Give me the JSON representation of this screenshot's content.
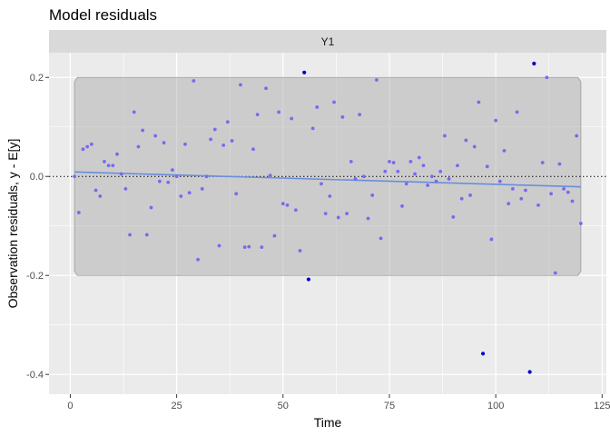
{
  "chart_data": {
    "type": "scatter",
    "title": "Model residuals",
    "panel": "Y1",
    "xlabel": "Time",
    "ylabel": "Observation residuals, y - E[y]",
    "xlim": [
      -5,
      126
    ],
    "ylim": [
      -0.44,
      0.25
    ],
    "xticks": [
      0,
      25,
      50,
      75,
      100,
      125
    ],
    "xtick_labels": [
      "0",
      "25",
      "50",
      "75",
      "100",
      "125"
    ],
    "yticks": [
      0.2,
      0.0,
      -0.2,
      -0.4
    ],
    "ytick_labels": [
      "0.2",
      "0.0",
      "-0.2",
      "-0.4"
    ],
    "grid": true,
    "zero_line": 0,
    "band": {
      "upper": 0.2,
      "lower": -0.2,
      "x_start": 1,
      "x_end": 120
    },
    "trend": {
      "x": [
        1,
        120
      ],
      "y": [
        0.009,
        -0.021
      ]
    },
    "colors": {
      "panel_bg": "#ebebeb",
      "strip_bg": "#d9d9d9",
      "band": "#a6a6a6",
      "inside_point": "#7b68ee",
      "outside_point": "#0000cd",
      "trend": "#6a8edc"
    },
    "points": [
      {
        "x": 1,
        "y": 0.0
      },
      {
        "x": 2,
        "y": -0.073
      },
      {
        "x": 3,
        "y": 0.055
      },
      {
        "x": 4,
        "y": 0.06
      },
      {
        "x": 5,
        "y": 0.065
      },
      {
        "x": 6,
        "y": -0.028
      },
      {
        "x": 7,
        "y": -0.04
      },
      {
        "x": 8,
        "y": 0.03
      },
      {
        "x": 9,
        "y": 0.022
      },
      {
        "x": 10,
        "y": 0.022
      },
      {
        "x": 11,
        "y": 0.045
      },
      {
        "x": 12,
        "y": 0.005
      },
      {
        "x": 13,
        "y": -0.025
      },
      {
        "x": 14,
        "y": -0.118
      },
      {
        "x": 15,
        "y": 0.13
      },
      {
        "x": 16,
        "y": 0.06
      },
      {
        "x": 17,
        "y": 0.093
      },
      {
        "x": 18,
        "y": -0.118
      },
      {
        "x": 19,
        "y": -0.063
      },
      {
        "x": 20,
        "y": 0.082
      },
      {
        "x": 21,
        "y": -0.01
      },
      {
        "x": 22,
        "y": 0.068
      },
      {
        "x": 23,
        "y": -0.012
      },
      {
        "x": 24,
        "y": 0.013
      },
      {
        "x": 25,
        "y": 0.0
      },
      {
        "x": 26,
        "y": -0.04
      },
      {
        "x": 27,
        "y": 0.065
      },
      {
        "x": 28,
        "y": -0.033
      },
      {
        "x": 29,
        "y": 0.193
      },
      {
        "x": 30,
        "y": -0.168
      },
      {
        "x": 31,
        "y": -0.025
      },
      {
        "x": 32,
        "y": 0.0
      },
      {
        "x": 33,
        "y": 0.075
      },
      {
        "x": 34,
        "y": 0.095
      },
      {
        "x": 35,
        "y": -0.14
      },
      {
        "x": 36,
        "y": 0.063
      },
      {
        "x": 37,
        "y": 0.11
      },
      {
        "x": 38,
        "y": 0.072
      },
      {
        "x": 39,
        "y": -0.035
      },
      {
        "x": 40,
        "y": 0.185
      },
      {
        "x": 41,
        "y": -0.143
      },
      {
        "x": 42,
        "y": -0.142
      },
      {
        "x": 43,
        "y": 0.055
      },
      {
        "x": 44,
        "y": 0.125
      },
      {
        "x": 45,
        "y": -0.143
      },
      {
        "x": 46,
        "y": 0.178
      },
      {
        "x": 47,
        "y": 0.002
      },
      {
        "x": 48,
        "y": -0.12
      },
      {
        "x": 49,
        "y": 0.13
      },
      {
        "x": 50,
        "y": -0.055
      },
      {
        "x": 51,
        "y": -0.058
      },
      {
        "x": 52,
        "y": 0.117
      },
      {
        "x": 53,
        "y": -0.068
      },
      {
        "x": 54,
        "y": -0.15
      },
      {
        "x": 55,
        "y": 0.21
      },
      {
        "x": 56,
        "y": -0.208
      },
      {
        "x": 57,
        "y": 0.097
      },
      {
        "x": 58,
        "y": 0.14
      },
      {
        "x": 59,
        "y": -0.015
      },
      {
        "x": 60,
        "y": -0.075
      },
      {
        "x": 61,
        "y": -0.04
      },
      {
        "x": 62,
        "y": 0.15
      },
      {
        "x": 63,
        "y": -0.083
      },
      {
        "x": 64,
        "y": 0.12
      },
      {
        "x": 65,
        "y": -0.075
      },
      {
        "x": 66,
        "y": 0.03
      },
      {
        "x": 67,
        "y": -0.005
      },
      {
        "x": 68,
        "y": 0.125
      },
      {
        "x": 69,
        "y": 0.0
      },
      {
        "x": 70,
        "y": -0.085
      },
      {
        "x": 71,
        "y": -0.038
      },
      {
        "x": 72,
        "y": 0.195
      },
      {
        "x": 73,
        "y": -0.125
      },
      {
        "x": 74,
        "y": 0.01
      },
      {
        "x": 75,
        "y": 0.03
      },
      {
        "x": 76,
        "y": 0.028
      },
      {
        "x": 77,
        "y": 0.01
      },
      {
        "x": 78,
        "y": -0.06
      },
      {
        "x": 79,
        "y": -0.015
      },
      {
        "x": 80,
        "y": 0.03
      },
      {
        "x": 81,
        "y": 0.005
      },
      {
        "x": 82,
        "y": 0.038
      },
      {
        "x": 83,
        "y": 0.022
      },
      {
        "x": 84,
        "y": -0.018
      },
      {
        "x": 85,
        "y": 0.0
      },
      {
        "x": 86,
        "y": -0.01
      },
      {
        "x": 87,
        "y": 0.01
      },
      {
        "x": 88,
        "y": 0.082
      },
      {
        "x": 89,
        "y": -0.005
      },
      {
        "x": 90,
        "y": -0.082
      },
      {
        "x": 91,
        "y": 0.022
      },
      {
        "x": 92,
        "y": -0.045
      },
      {
        "x": 93,
        "y": 0.073
      },
      {
        "x": 94,
        "y": -0.038
      },
      {
        "x": 95,
        "y": 0.06
      },
      {
        "x": 96,
        "y": 0.15
      },
      {
        "x": 97,
        "y": -0.358
      },
      {
        "x": 98,
        "y": 0.02
      },
      {
        "x": 99,
        "y": -0.127
      },
      {
        "x": 100,
        "y": 0.113
      },
      {
        "x": 101,
        "y": -0.01
      },
      {
        "x": 102,
        "y": 0.052
      },
      {
        "x": 103,
        "y": -0.055
      },
      {
        "x": 104,
        "y": -0.025
      },
      {
        "x": 105,
        "y": 0.13
      },
      {
        "x": 106,
        "y": -0.045
      },
      {
        "x": 107,
        "y": -0.028
      },
      {
        "x": 108,
        "y": -0.395
      },
      {
        "x": 109,
        "y": 0.228
      },
      {
        "x": 110,
        "y": -0.058
      },
      {
        "x": 111,
        "y": 0.028
      },
      {
        "x": 112,
        "y": 0.2
      },
      {
        "x": 113,
        "y": -0.035
      },
      {
        "x": 114,
        "y": -0.195
      },
      {
        "x": 115,
        "y": 0.025
      },
      {
        "x": 116,
        "y": -0.025
      },
      {
        "x": 117,
        "y": -0.032
      },
      {
        "x": 118,
        "y": -0.05
      },
      {
        "x": 119,
        "y": 0.082
      },
      {
        "x": 120,
        "y": -0.095
      }
    ]
  }
}
